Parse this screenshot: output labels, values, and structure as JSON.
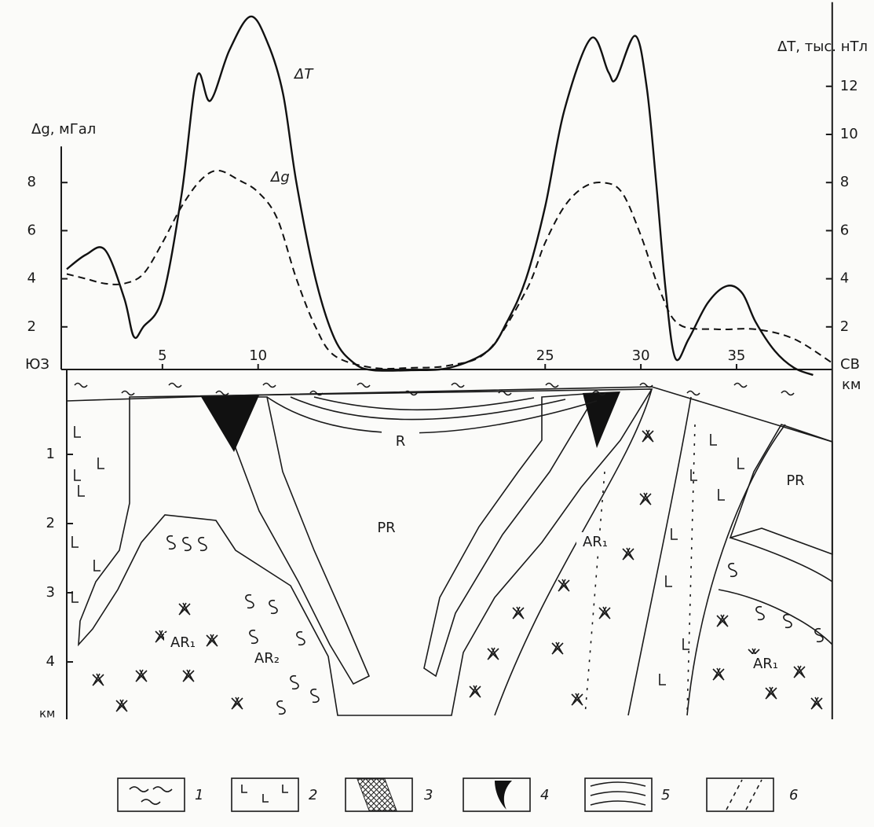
{
  "chart_data": {
    "type": "line",
    "y_label": "Δg, мГал",
    "y2_label": "ΔT, тыс. нТл",
    "x_left_label": "ЮЗ",
    "x_right_label": "СВ",
    "x_unit": "км",
    "xlim": [
      0,
      40
    ],
    "xticks": [
      5,
      10,
      25,
      30,
      35
    ],
    "ylim": [
      0,
      9.5
    ],
    "yticks": [
      2,
      4,
      6,
      8
    ],
    "y2lim": [
      0,
      15.5
    ],
    "y2ticks": [
      2,
      4,
      6,
      8,
      10,
      12
    ],
    "series": [
      {
        "name": "ΔT",
        "axis": "y2",
        "color": "#111111",
        "line_style": "solid",
        "x": [
          0,
          1,
          2,
          3,
          3.5,
          4,
          5,
          6,
          6.8,
          7.5,
          8.5,
          9.6,
          10.5,
          11.3,
          12,
          13,
          14,
          15,
          16,
          18,
          20,
          22,
          23,
          24,
          25,
          26,
          27.4,
          28.3,
          28.7,
          29.7,
          30.3,
          30.8,
          31.3,
          31.8,
          32.5,
          33.5,
          34.5,
          35.3,
          36,
          37,
          38,
          39
        ],
        "values": [
          4.4,
          5.0,
          5.2,
          3.2,
          1.6,
          2.0,
          3.2,
          7.5,
          12.4,
          11.4,
          13.5,
          14.9,
          13.8,
          11.7,
          8.0,
          4.0,
          1.5,
          0.5,
          0.2,
          0.2,
          0.3,
          1.0,
          2.2,
          4.0,
          7.0,
          11.0,
          14.0,
          12.6,
          12.3,
          14.1,
          12.0,
          8.0,
          3.5,
          0.7,
          1.5,
          3.0,
          3.7,
          3.4,
          2.2,
          1.0,
          0.3,
          0.0
        ]
      },
      {
        "name": "Δg",
        "color": "#111111",
        "line_style": "dashed",
        "x": [
          0,
          1,
          2,
          3,
          4,
          5,
          6,
          7,
          7.9,
          9,
          10,
          11,
          12,
          13,
          14,
          16,
          18,
          20,
          22,
          24,
          25,
          26,
          27,
          28,
          29,
          30,
          31,
          32,
          34,
          36,
          38,
          40
        ],
        "values": [
          4.2,
          4.0,
          3.8,
          3.8,
          4.2,
          5.5,
          7.0,
          8.1,
          8.5,
          8.1,
          7.6,
          6.5,
          4.0,
          2.0,
          0.8,
          0.3,
          0.3,
          0.4,
          1.0,
          3.5,
          5.5,
          7.0,
          7.8,
          8.0,
          7.6,
          5.8,
          3.5,
          2.1,
          1.9,
          1.9,
          1.5,
          0.5
        ]
      }
    ]
  },
  "section": {
    "labels": [
      "R",
      "PR",
      "PR",
      "AR₁",
      "AR₁",
      "AR₂",
      "AR₁"
    ],
    "depth_ticks": [
      1,
      2,
      3,
      4
    ],
    "depth_unit": "км"
  },
  "legend": {
    "items": [
      "1",
      "2",
      "3",
      "4",
      "5",
      "6"
    ]
  }
}
